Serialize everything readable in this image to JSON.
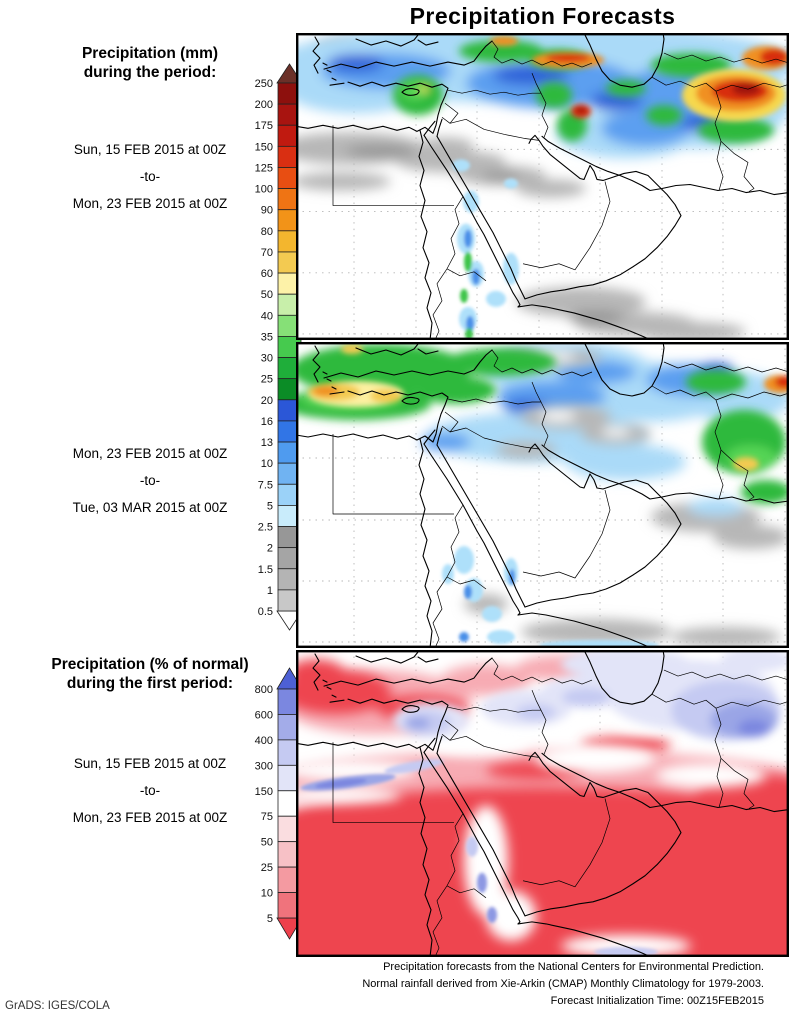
{
  "title": "Precipitation Forecasts",
  "credit": "GrADS: IGES/COLA",
  "footer": {
    "line1": "Precipitation forecasts from the National Centers for Environmental Prediction.",
    "line2": "Normal rainfall derived from Xie-Arkin (CMAP) Monthly Climatology for 1979-2003.",
    "line3": "Forecast Initialization Time: 00Z15FEB2015"
  },
  "mm_section": {
    "heading1": "Precipitation (mm)",
    "heading2": "during the period:",
    "period1": {
      "start": "Sun, 15 FEB 2015 at 00Z",
      "sep": "-to-",
      "end": "Mon, 23 FEB 2015 at 00Z"
    },
    "period2": {
      "start": "Mon, 23 FEB 2015 at 00Z",
      "sep": "-to-",
      "end": "Tue, 03 MAR 2015 at 00Z"
    },
    "colorbar": {
      "units": "mm",
      "tick_labels": [
        "250",
        "200",
        "175",
        "150",
        "125",
        "100",
        "90",
        "80",
        "70",
        "60",
        "50",
        "40",
        "35",
        "30",
        "25",
        "20",
        "16",
        "13",
        "10",
        "7.5",
        "5",
        "2.5",
        "2",
        "1.5",
        "1",
        "0.5"
      ],
      "segment_colors_top_to_bottom": [
        "#8d100d",
        "#a81410",
        "#c01a10",
        "#d92f12",
        "#e84e12",
        "#ef7414",
        "#f29318",
        "#f3b62e",
        "#f3ca51",
        "#fdf2a8",
        "#c8efaa",
        "#86e077",
        "#46ca4e",
        "#1fae3a",
        "#0b8c26",
        "#2b57d7",
        "#3175e6",
        "#4f9bef",
        "#70b3f2",
        "#9bd2f8",
        "#c9ecfb",
        "#979797",
        "#a5a5a5",
        "#b4b4b4",
        "#c8c8c8"
      ],
      "above_max_color": "#6b3028",
      "below_min_color": "#ffffff"
    }
  },
  "pct_section": {
    "heading1": "Precipitation (% of normal)",
    "heading2": "during the first period:",
    "period": {
      "start": "Sun, 15 FEB 2015 at 00Z",
      "sep": "-to-",
      "end": "Mon, 23 FEB 2015 at 00Z"
    },
    "colorbar": {
      "units": "% of normal",
      "tick_labels": [
        "800",
        "600",
        "400",
        "300",
        "150",
        "75",
        "50",
        "25",
        "10",
        "5"
      ],
      "segment_colors_top_to_bottom": [
        "#7b87e0",
        "#a3ace9",
        "#c5caf2",
        "#e2e4f8",
        "#ffffff",
        "#fadde0",
        "#f7c1c6",
        "#f49aa1",
        "#f0737c"
      ],
      "above_max_color": "#4d60d5",
      "below_min_color": "#ee404c"
    }
  },
  "chart_data": [
    {
      "type": "heatmap",
      "subtype": "filled-contour precipitation forecast map",
      "region": "Middle East / North Africa / Southwest Asia",
      "title": "Precipitation (mm), Sun 15 FEB 2015 00Z to Mon 23 FEB 2015 00Z",
      "units": "mm",
      "levels": [
        0.5,
        1,
        1.5,
        2,
        2.5,
        5,
        7.5,
        10,
        13,
        16,
        20,
        25,
        30,
        35,
        40,
        50,
        60,
        70,
        80,
        90,
        100,
        125,
        150,
        175,
        200,
        250
      ],
      "colors_low_to_high": [
        "#ffffff",
        "#c8c8c8",
        "#b4b4b4",
        "#a5a5a5",
        "#979797",
        "#c9ecfb",
        "#9bd2f8",
        "#70b3f2",
        "#4f9bef",
        "#3175e6",
        "#2b57d7",
        "#0b8c26",
        "#1fae3a",
        "#46ca4e",
        "#86e077",
        "#c8efaa",
        "#fdf2a8",
        "#f3ca51",
        "#f3b62e",
        "#f29318",
        "#ef7414",
        "#e84e12",
        "#d92f12",
        "#c01a10",
        "#a81410",
        "#8d100d",
        "#6b3028"
      ],
      "pattern": "Heavy rain (orange/red, 100-250+ mm) centered on Afghanistan and a streak near the Caucasus; widespread 5-40 mm (blue) across Turkey, Iraq and Iran; green maximum (20-40 mm) over Cyprus and the Levant and along the Zagros; light amounts (gray, 0.5-2.5 mm) across northern Africa, central Arabia, Yemen and the Horn; dry white over the Sahara and interior Arabia; isolated light-blue and green showers along the Red Sea."
    },
    {
      "type": "heatmap",
      "subtype": "filled-contour precipitation forecast map",
      "region": "Middle East / North Africa / Southwest Asia",
      "title": "Precipitation (mm), Mon 23 FEB 2015 00Z to Tue 03 MAR 2015 00Z",
      "units": "mm",
      "levels": [
        0.5,
        1,
        1.5,
        2,
        2.5,
        5,
        7.5,
        10,
        13,
        16,
        20,
        25,
        30,
        35,
        40,
        50,
        60,
        70,
        80,
        90,
        100,
        125,
        150,
        175,
        200,
        250
      ],
      "colors_low_to_high": [
        "#ffffff",
        "#c8c8c8",
        "#b4b4b4",
        "#a5a5a5",
        "#979797",
        "#c9ecfb",
        "#9bd2f8",
        "#70b3f2",
        "#4f9bef",
        "#3175e6",
        "#2b57d7",
        "#0b8c26",
        "#1fae3a",
        "#46ca4e",
        "#86e077",
        "#c8efaa",
        "#fdf2a8",
        "#f3ca51",
        "#f3b62e",
        "#f29318",
        "#ef7414",
        "#e84e12",
        "#d92f12",
        "#c01a10",
        "#a81410",
        "#8d100d",
        "#6b3028"
      ],
      "pattern": "Green band (20-50 mm) with yellow/orange cores (60-100 mm) along the southeast Mediterranean and Libya/Egypt coast; green over Turkey; blue 5-20 mm across the Caspian region and Iran with a green/orange maximum over the Zagros; small red maximum at the far northeast edge; light blue 2.5-7.5 mm over northern Arabia; gray traces over central Arabia, southern coasts and the Black Sea; light blue/blue showers along the southern Red Sea."
    },
    {
      "type": "heatmap",
      "subtype": "filled-contour percent-of-normal precipitation map",
      "region": "Middle East / North Africa / Southwest Asia",
      "title": "Precipitation (% of normal), Sun 15 FEB 2015 00Z to Mon 23 FEB 2015 00Z",
      "units": "% of normal",
      "levels": [
        5,
        10,
        25,
        50,
        75,
        150,
        300,
        400,
        600,
        800
      ],
      "colors_low_to_high": [
        "#ee404c",
        "#f0737c",
        "#f49aa1",
        "#f7c1c6",
        "#fadde0",
        "#ffffff",
        "#e2e4f8",
        "#c5caf2",
        "#a3ace9",
        "#7b87e0",
        "#4d60d5"
      ],
      "pattern": "Much-below-normal (solid red, under 5-25%) across the Sahara, Egypt, Sudan, the Arabian Peninsula interior and southeast Iran/Pakistan; above-normal (lavender to blue-purple, 150-600%) over Turkey, the Levant, parts of Iraq/Iran and a large maximum over Afghanistan; a blue above-normal streak across the Egypt/Libya desert; near-normal white corridor along the Red Sea with small blue-purple spots."
    }
  ]
}
